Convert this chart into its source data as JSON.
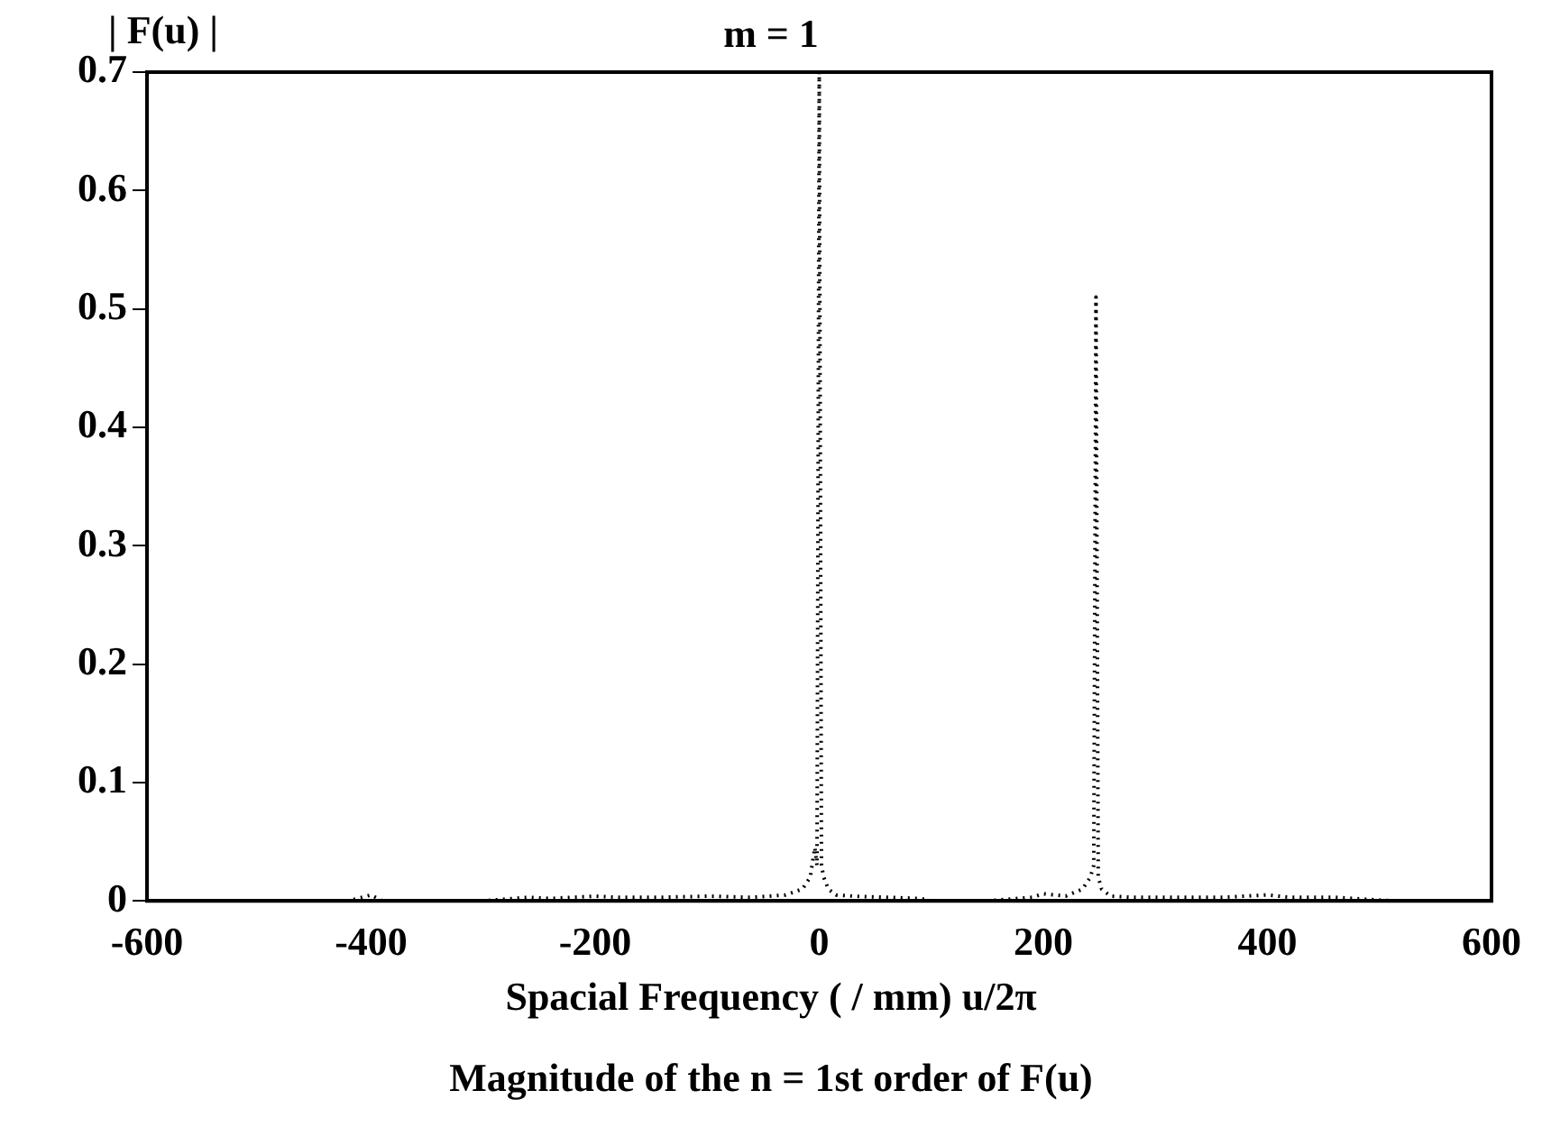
{
  "chart_data": {
    "type": "line",
    "title": "m = 1",
    "ylabel": "| F(u) |",
    "xlabel": "Spacial Frequency  ( / mm)  u/2π",
    "annotations": [
      "Magnitude of the n = 1st order of F(u)"
    ],
    "series": [
      {
        "color": "#000000",
        "x": [
          -512,
          -420,
          -400,
          -390,
          -300,
          -260,
          -240,
          -200,
          -180,
          -140,
          -100,
          -60,
          -30,
          -15,
          -8,
          -4,
          -2,
          0,
          2,
          4,
          8,
          15,
          30,
          60,
          90,
          100,
          150,
          190,
          200,
          220,
          235,
          242,
          245,
          247,
          249,
          252,
          260,
          280,
          320,
          360,
          400,
          420,
          460,
          512
        ],
        "values": [
          0,
          0,
          0.005,
          0,
          0,
          0.003,
          0.002,
          0.004,
          0.003,
          0.003,
          0.004,
          0.003,
          0.005,
          0.01,
          0.02,
          0.045,
          0.03,
          0.7,
          0.03,
          0.02,
          0.01,
          0.005,
          0.004,
          0.003,
          0.002,
          0,
          0,
          0.003,
          0.006,
          0.004,
          0.01,
          0.02,
          0.03,
          0.51,
          0.02,
          0.01,
          0.004,
          0.003,
          0.003,
          0.003,
          0.005,
          0.003,
          0.003,
          0
        ]
      }
    ],
    "xlim": [
      -600,
      600
    ],
    "xticks": [
      -600,
      -400,
      -200,
      0,
      200,
      400,
      600
    ],
    "ylim": [
      0,
      0.7
    ],
    "yticks": [
      0,
      0.1,
      0.2,
      0.3,
      0.4,
      0.5,
      0.6,
      0.7
    ],
    "grid": false,
    "legend": false,
    "marker": "none",
    "line_style": "dotted"
  }
}
